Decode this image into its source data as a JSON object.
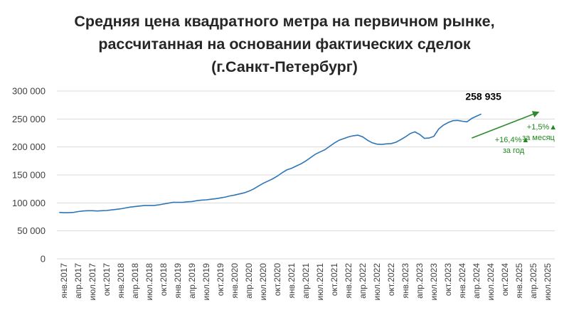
{
  "chart_data": {
    "type": "line",
    "title_lines": [
      "Средняя цена квадратного метра на первичном рынке,",
      "рассчитанная на основании фактических сделок",
      "(г.Санкт-Петербург)"
    ],
    "ylim": [
      0,
      300000
    ],
    "y_ticks": [
      "0",
      "50 000",
      "100 000",
      "150 000",
      "200 000",
      "250 000",
      "300 000"
    ],
    "grid": true,
    "x_start": "2017-01",
    "x_tick_labels": [
      "янв.2017",
      "апр.2017",
      "июл.2017",
      "окт.2017",
      "янв.2018",
      "апр.2018",
      "июл.2018",
      "окт.2018",
      "янв.2019",
      "апр.2019",
      "июл.2019",
      "окт.2019",
      "янв.2020",
      "апр.2020",
      "июл.2020",
      "окт.2020",
      "янв.2021",
      "апр.2021",
      "июл.2021",
      "окт.2021",
      "янв.2022",
      "апр.2022",
      "июл.2022",
      "окт.2022",
      "янв.2023",
      "апр.2023",
      "июл.2023",
      "окт.2023",
      "янв.2024",
      "апр.2024",
      "июл.2024",
      "окт.2024",
      "янв.2025",
      "апр.2025",
      "июл.2025"
    ],
    "series": [
      {
        "color": "#2e75b6",
        "values": [
          83000,
          82500,
          82500,
          83000,
          84500,
          85500,
          86000,
          86000,
          85500,
          86000,
          86500,
          87500,
          88500,
          89500,
          91000,
          92500,
          93500,
          94500,
          95500,
          95500,
          95500,
          96500,
          98000,
          99500,
          101000,
          101000,
          101000,
          102000,
          102500,
          104000,
          105000,
          105500,
          106500,
          107500,
          109000,
          110500,
          112500,
          114000,
          116000,
          118000,
          121000,
          125000,
          130000,
          135000,
          139000,
          143000,
          148000,
          154000,
          159000,
          162000,
          166000,
          170000,
          175000,
          181000,
          187000,
          191000,
          195000,
          201000,
          207000,
          212000,
          215000,
          218000,
          220000,
          221000,
          218000,
          212000,
          207500,
          205000,
          204500,
          205500,
          206000,
          208500,
          213000,
          218000,
          224000,
          227000,
          222500,
          215500,
          216000,
          219000,
          232000,
          239000,
          243500,
          247000,
          247500,
          246000,
          245000,
          251000,
          255000,
          258935
        ]
      }
    ],
    "trend_line": {
      "color": "#2e8b2e",
      "from": [
        "2024-04",
        216000
      ],
      "to": [
        "2025-06",
        262000
      ]
    },
    "last_value_label": "258 935",
    "annotations": [
      {
        "text_lines": [
          "+1,5%▲",
          "за месяц"
        ]
      },
      {
        "text_lines": [
          "+16,4%▲",
          "за год"
        ]
      }
    ]
  }
}
